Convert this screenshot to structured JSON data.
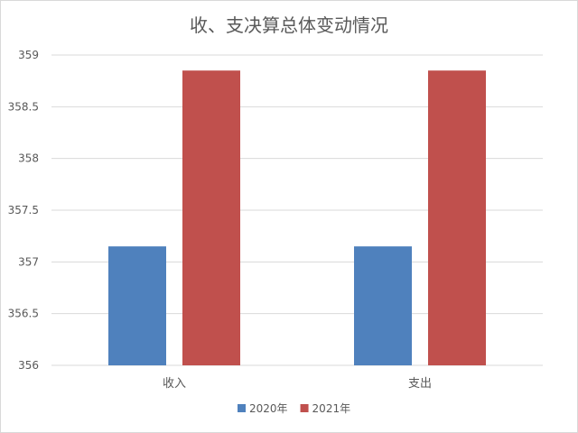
{
  "chart_data": {
    "type": "bar",
    "title": "收、支决算总体变动情况",
    "categories": [
      "收入",
      "支出"
    ],
    "series": [
      {
        "name": "2020年",
        "values": [
          357.15,
          357.15
        ],
        "color": "#4f81bd"
      },
      {
        "name": "2021年",
        "values": [
          358.85,
          358.85
        ],
        "color": "#c0504d"
      }
    ],
    "xlabel": "",
    "ylabel": "",
    "ylim": [
      356,
      359
    ],
    "yticks": [
      "356",
      "356.5",
      "357",
      "357.5",
      "358",
      "358.5",
      "359"
    ],
    "grid": true,
    "legend_position": "bottom"
  }
}
